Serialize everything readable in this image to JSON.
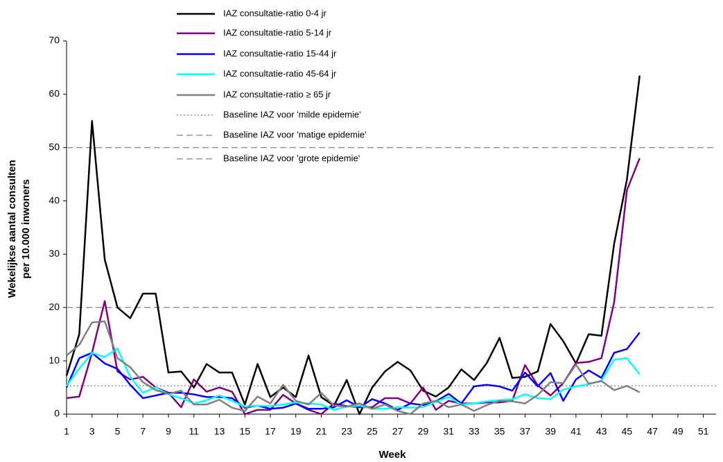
{
  "chart_data": {
    "type": "line",
    "y_label": [
      "Wekelijkse aantal consulten",
      "per 10.000 inwoners"
    ],
    "x_label": "Week",
    "x": [
      1,
      2,
      3,
      4,
      5,
      6,
      7,
      8,
      9,
      10,
      11,
      12,
      13,
      14,
      15,
      16,
      17,
      18,
      19,
      20,
      21,
      22,
      23,
      24,
      25,
      26,
      27,
      28,
      29,
      30,
      31,
      32,
      33,
      34,
      35,
      36,
      37,
      38,
      39,
      40,
      41,
      42,
      43,
      44,
      45,
      46
    ],
    "xlim": [
      1,
      52
    ],
    "xticks": [
      1,
      3,
      5,
      7,
      9,
      11,
      13,
      15,
      17,
      19,
      21,
      23,
      25,
      27,
      29,
      31,
      33,
      35,
      37,
      39,
      41,
      43,
      45,
      47,
      49,
      51
    ],
    "ylim": [
      0,
      70
    ],
    "yticks": [
      0,
      10,
      20,
      30,
      40,
      50,
      60,
      70
    ],
    "series": [
      {
        "name": "IAZ consultatie-ratio 0-4 jr",
        "color": "#000000",
        "values": [
          7.2,
          15,
          55,
          29,
          20,
          18,
          22.6,
          22.6,
          7.8,
          8,
          5,
          9.4,
          7.8,
          7.8,
          1.8,
          9.4,
          3.2,
          5,
          3.2,
          11,
          3.2,
          1.6,
          6.4,
          0,
          5,
          8,
          9.8,
          8.2,
          4.4,
          3.3,
          5,
          8.4,
          6.4,
          9.6,
          14.3,
          6.8,
          7,
          8,
          16.9,
          13.7,
          9.5,
          15,
          14.7,
          32,
          44,
          63.5
        ]
      },
      {
        "name": "IAZ consultatie-ratio 5-14 jr",
        "color": "#800080",
        "values": [
          3,
          3.3,
          11.5,
          21.2,
          8,
          6.5,
          7,
          5,
          4,
          1.3,
          6.5,
          4.2,
          5,
          4.2,
          0,
          0.8,
          0.8,
          3.6,
          2,
          0.8,
          0,
          2,
          1.5,
          1.3,
          1.3,
          3,
          3,
          2,
          5,
          0.8,
          2.5,
          2,
          2,
          2.2,
          2.2,
          2.5,
          9.2,
          5.4,
          3.5,
          5.8,
          9.6,
          9.8,
          10.5,
          21,
          42,
          48
        ]
      },
      {
        "name": "IAZ consultatie-ratio 15-44 jr",
        "color": "#0000ff",
        "values": [
          5,
          10.5,
          11.5,
          9.5,
          8.5,
          5.5,
          3,
          3.5,
          4,
          4,
          3.7,
          3.2,
          3.2,
          3,
          1.2,
          1.6,
          1,
          1.2,
          2,
          1,
          1,
          1.3,
          2.6,
          1.3,
          2.8,
          2,
          0.8,
          2,
          1.7,
          2.4,
          3.8,
          2,
          5.2,
          5.5,
          5.2,
          4.4,
          7.8,
          5.2,
          7.7,
          2.5,
          6.5,
          8.2,
          6.8,
          11.5,
          12.2,
          15.3
        ]
      },
      {
        "name": "IAZ consultatie-ratio 45-64 jr",
        "color": "#00ffff",
        "values": [
          5.3,
          8.5,
          11.5,
          10.7,
          12.3,
          7,
          4,
          5,
          3.7,
          3,
          2,
          2.6,
          3.5,
          2.5,
          1.4,
          1.6,
          1.5,
          1.8,
          2.2,
          2,
          1.8,
          0.8,
          1.4,
          1.6,
          1,
          1,
          1.3,
          1.2,
          1.3,
          2.3,
          3.2,
          1.8,
          2,
          2.4,
          2.6,
          2.8,
          3.7,
          3,
          2.8,
          4.6,
          5.2,
          5.6,
          6.3,
          10.2,
          10.5,
          7.5
        ]
      },
      {
        "name": "IAZ consultatie-ratio ≥ 65 jr",
        "color": "#808080",
        "values": [
          11,
          13,
          17.2,
          17.4,
          10.5,
          8.8,
          6,
          4.5,
          3.8,
          4.4,
          1.8,
          1.8,
          2.7,
          1.2,
          0.6,
          3.3,
          2,
          5.5,
          2.5,
          1.8,
          4,
          1.6,
          1.4,
          2,
          1,
          1.8,
          0.6,
          0,
          2,
          2.5,
          1.3,
          1.8,
          0.6,
          1.7,
          2.5,
          2.4,
          2,
          3.6,
          6,
          5.8,
          9.3,
          5.7,
          6.2,
          4.5,
          5.3,
          4.1
        ]
      }
    ],
    "baselines": [
      {
        "name": "Baseline IAZ voor 'milde epidemie'",
        "value": 5.3,
        "color": "#808080",
        "dash": "2,3"
      },
      {
        "name": "Baseline IAZ voor 'matige epidemie'",
        "value": 20,
        "color": "#808080",
        "dash": "9,5"
      },
      {
        "name": "Baseline IAZ voor 'grote epidemie'",
        "value": 50,
        "color": "#808080",
        "dash": "9,5"
      }
    ]
  }
}
